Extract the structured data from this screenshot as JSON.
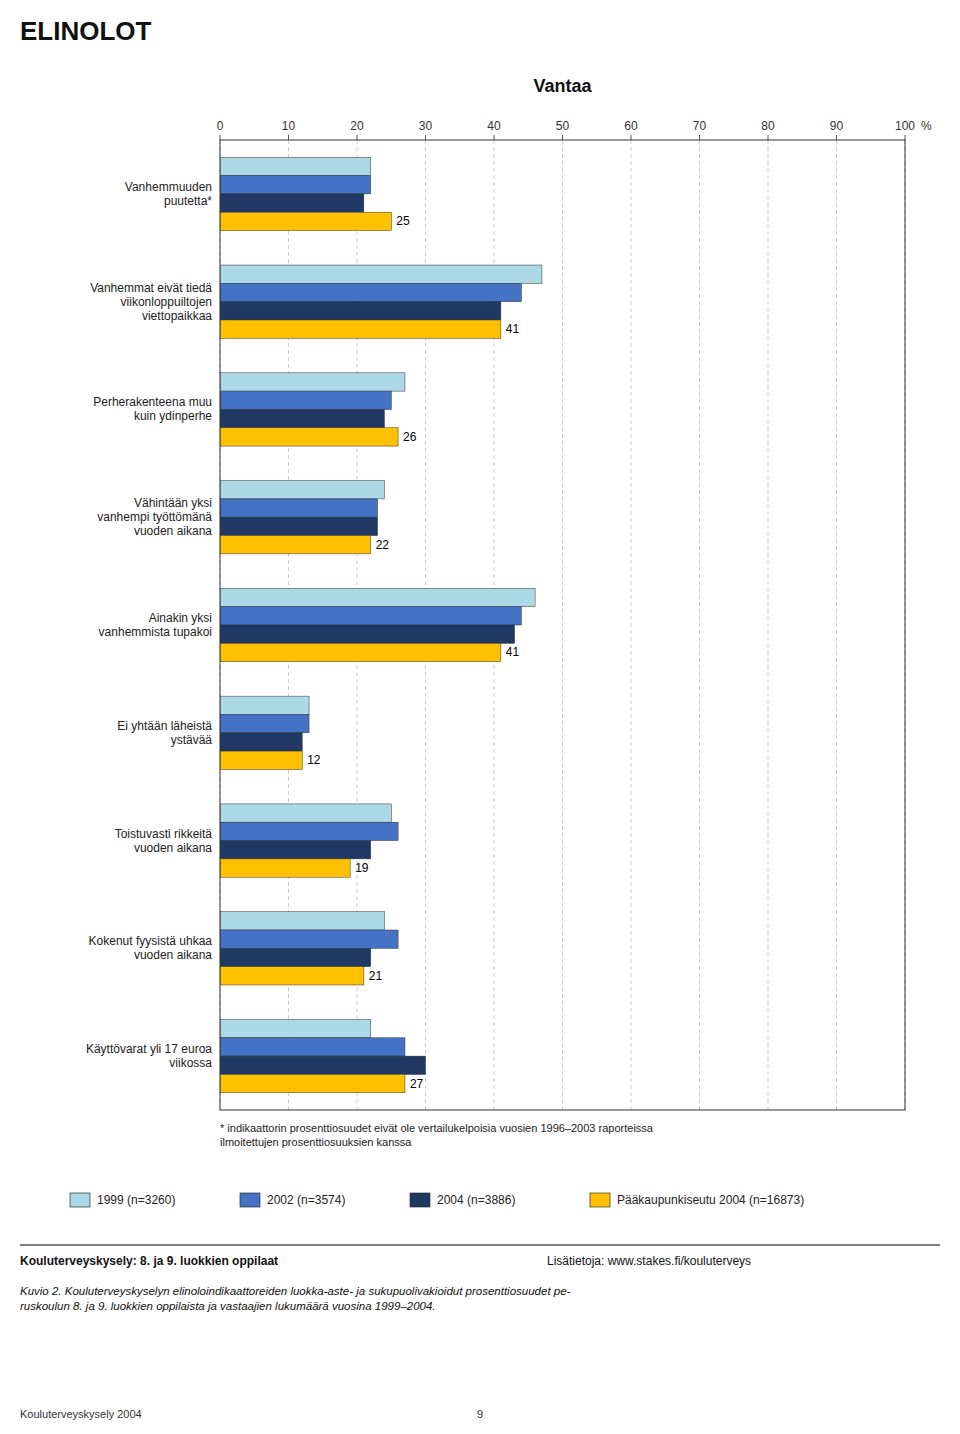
{
  "chart_data": {
    "type": "bar",
    "orientation": "horizontal",
    "title": "Vantaa",
    "xlabel": "%",
    "categories": [
      "Vanhemmuuden\npuutetta*",
      "Vanhemmat eivät tiedä\nviikonloppuiltojen\nviettopaikkaa",
      "Perherakenteena muu\nkuin ydinperhe",
      "Vähintään yksi\nvanhempi työttömänä\nvuoden aikana",
      "Ainakin yksi\nvanhemmista tupakoi",
      "Ei yhtään läheistä\nystävää",
      "Toistuvasti rikkeitä\nvuoden aikana",
      "Kokenut fyysistä uhkaa\nvuoden aikana",
      "Käyttövarat yli 17 euroa\nviikossa"
    ],
    "series": [
      {
        "name": "1999 (n=3260)",
        "color": "#add8e6",
        "values": [
          22,
          47,
          27,
          24,
          46,
          13,
          25,
          24,
          22
        ]
      },
      {
        "name": "2002 (n=3574)",
        "color": "#4472c4",
        "values": [
          22,
          44,
          25,
          23,
          44,
          13,
          26,
          26,
          27
        ]
      },
      {
        "name": "2004 (n=3886)",
        "color": "#1f3864",
        "values": [
          21,
          41,
          24,
          23,
          43,
          12,
          22,
          22,
          30
        ]
      },
      {
        "name": "Pääkaupunkiseutu 2004 (n=16873)",
        "color": "#ffc000",
        "values": [
          25,
          41,
          26,
          22,
          41,
          12,
          19,
          21,
          27
        ],
        "data_labels": true
      }
    ],
    "xlim": [
      0,
      100
    ],
    "xticks": [
      0,
      10,
      20,
      30,
      40,
      50,
      60,
      70,
      80,
      90,
      100
    ],
    "grid": true,
    "legend": "bottom",
    "annotations": [
      "ELINOLOT",
      "* indikaattorin prosenttiosuudet eivät ole vertailukelpoisia vuosien 1996–2003 raporteissa\nilmoitettujen prosenttiosuuksien kanssa",
      "Kouluterveyskysely: 8. ja 9. luokkien oppilaat",
      "Lisätietoja: www.stakes.fi/kouluterveys",
      "Kuvio 2. Kouluterveyskyselyn elinoloindikaattoreiden luokka-aste- ja sukupuolivakioidut prosenttiosuudet pe-\nruskoulun 8. ja 9. luokkien oppilaista ja vastaajien lukumäärä vuosina 1999–2004.",
      "Kouluterveyskysely 2004",
      "9"
    ]
  }
}
